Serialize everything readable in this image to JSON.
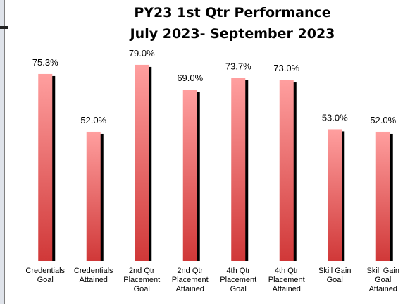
{
  "chart_data": {
    "type": "bar",
    "title": [
      "PY23 1st Qtr Performance",
      "July 2023- September 2023"
    ],
    "categories": [
      "Credentials Goal",
      "Credentials Attained",
      "2nd Qtr Placement Goal",
      "2nd Qtr Placement Attained",
      "4th Qtr Placement Goal",
      "4th Qtr Placement Attained",
      "Skill Gain Goal",
      "Skill Gain Goal Attained"
    ],
    "values": [
      75.3,
      52.0,
      79.0,
      69.0,
      73.7,
      73.0,
      53.0,
      52.0
    ],
    "value_labels": [
      "75.3%",
      "52.0%",
      "79.0%",
      "69.0%",
      "73.7%",
      "73.0%",
      "53.0%",
      "52.0%"
    ],
    "gradient": [
      "#ff9f9f",
      "#d03838"
    ],
    "ylim": [
      0,
      100
    ]
  }
}
